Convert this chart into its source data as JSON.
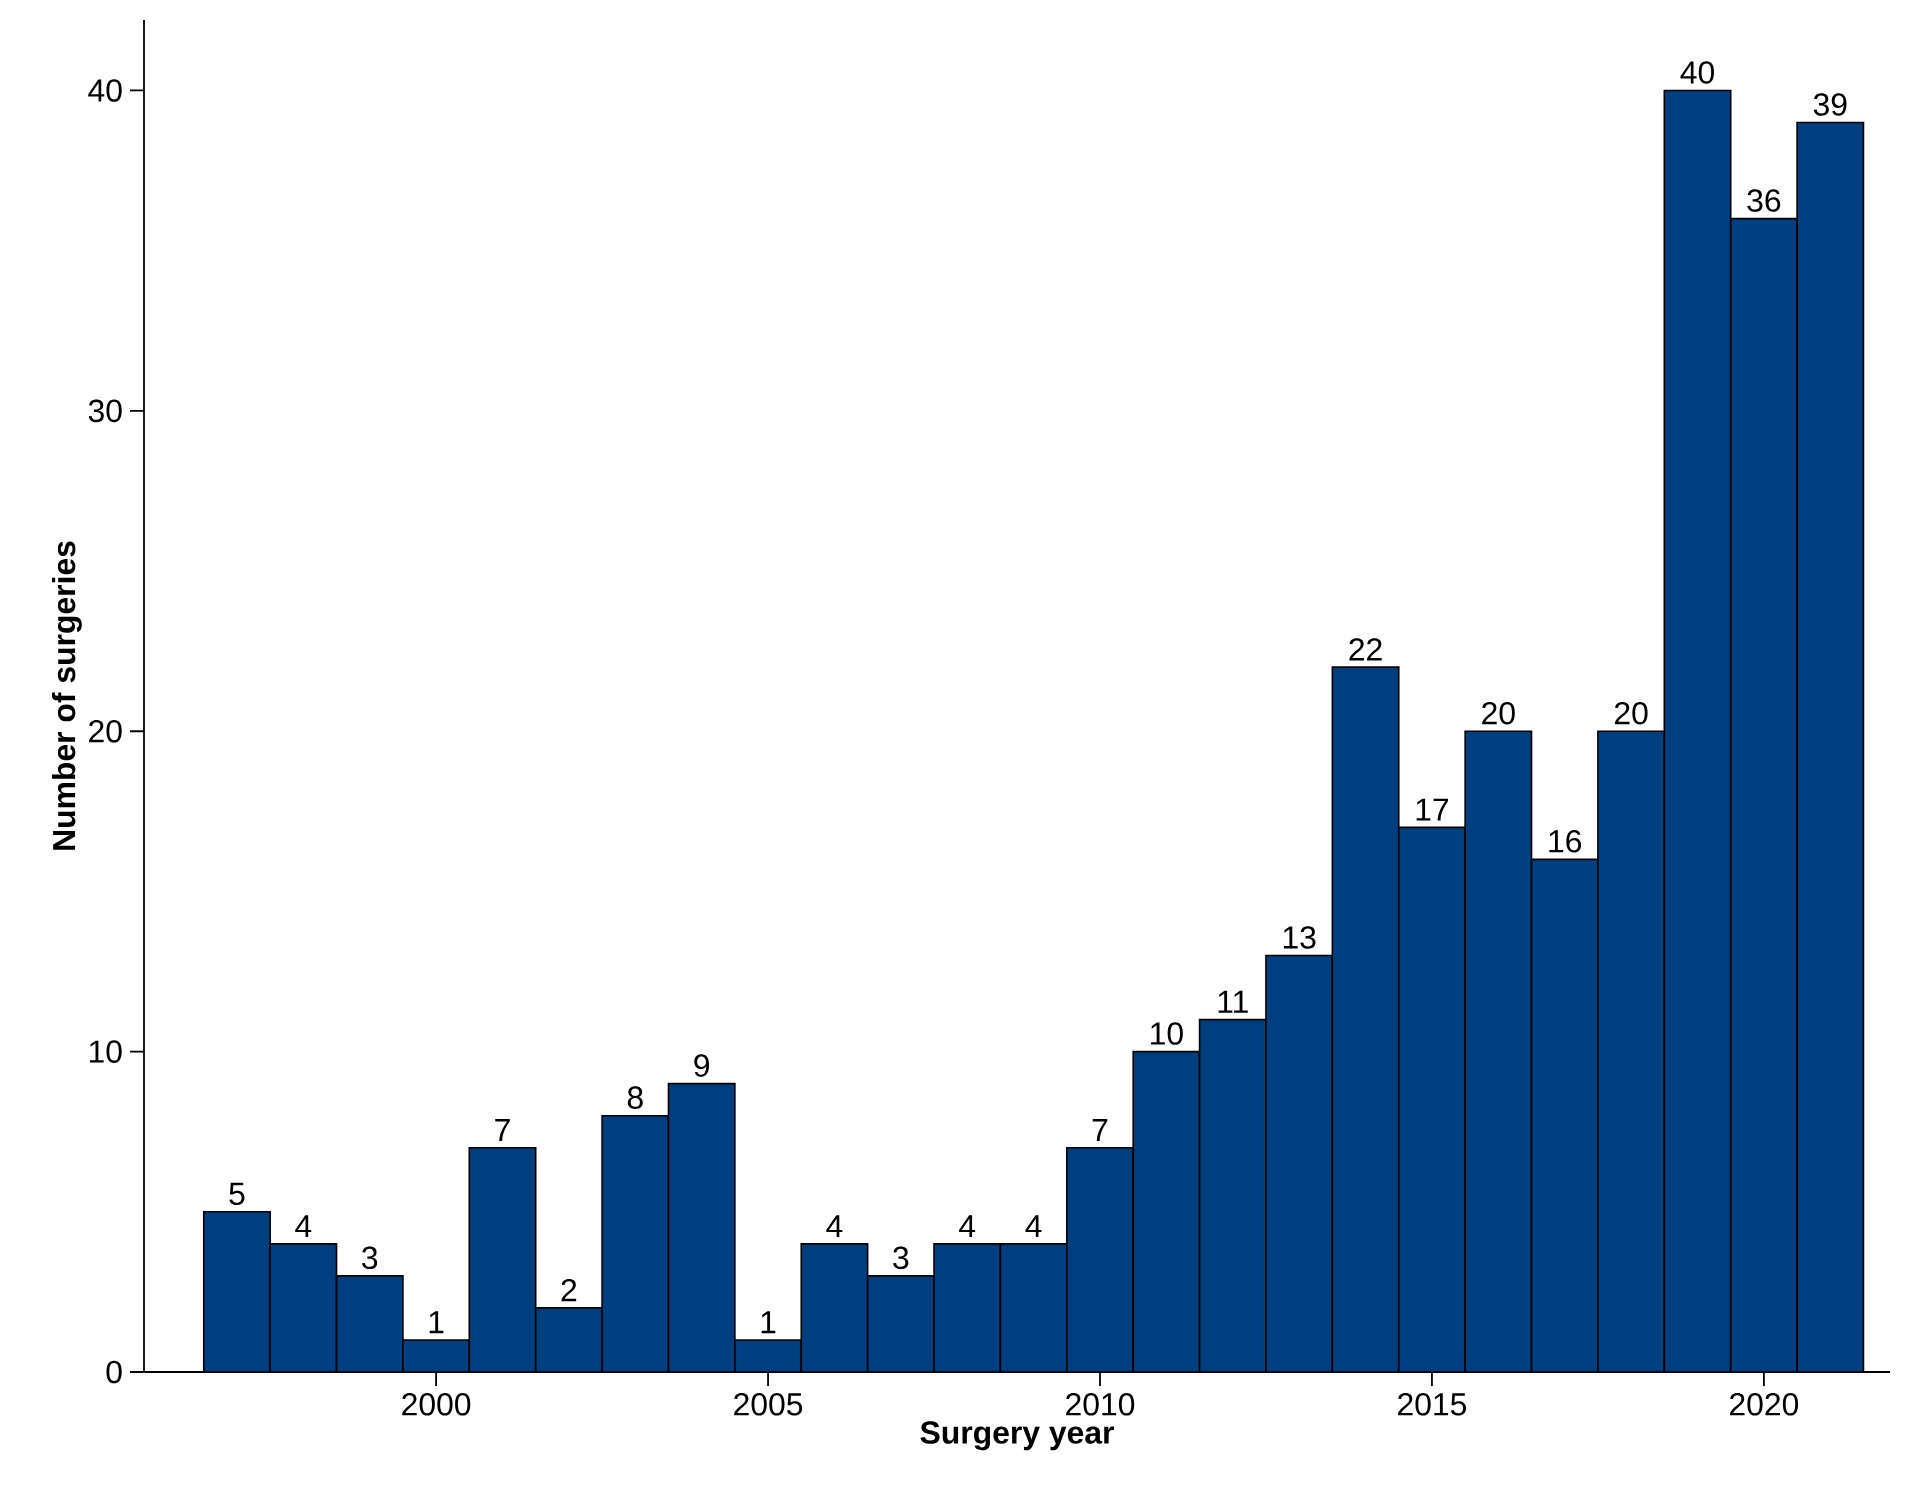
{
  "chart_data": {
    "type": "bar",
    "xlabel": "Surgery year",
    "ylabel": "Number of surgeries",
    "x": [
      1997,
      1998,
      1999,
      2000,
      2001,
      2002,
      2003,
      2004,
      2005,
      2006,
      2007,
      2008,
      2009,
      2010,
      2011,
      2012,
      2013,
      2014,
      2015,
      2016,
      2017,
      2018,
      2019,
      2020,
      2021
    ],
    "values": [
      5,
      4,
      3,
      1,
      7,
      2,
      8,
      9,
      1,
      4,
      3,
      4,
      4,
      7,
      10,
      11,
      13,
      22,
      17,
      20,
      16,
      20,
      40,
      36,
      39
    ],
    "color": "#003f7f",
    "xlim": [
      1995.6,
      2021.9
    ],
    "ylim": [
      0,
      42.2
    ],
    "xticks": [
      2000,
      2005,
      2010,
      2015,
      2020
    ],
    "yticks": [
      0,
      10,
      20,
      30,
      40
    ],
    "data_labels": true,
    "grid": false
  }
}
